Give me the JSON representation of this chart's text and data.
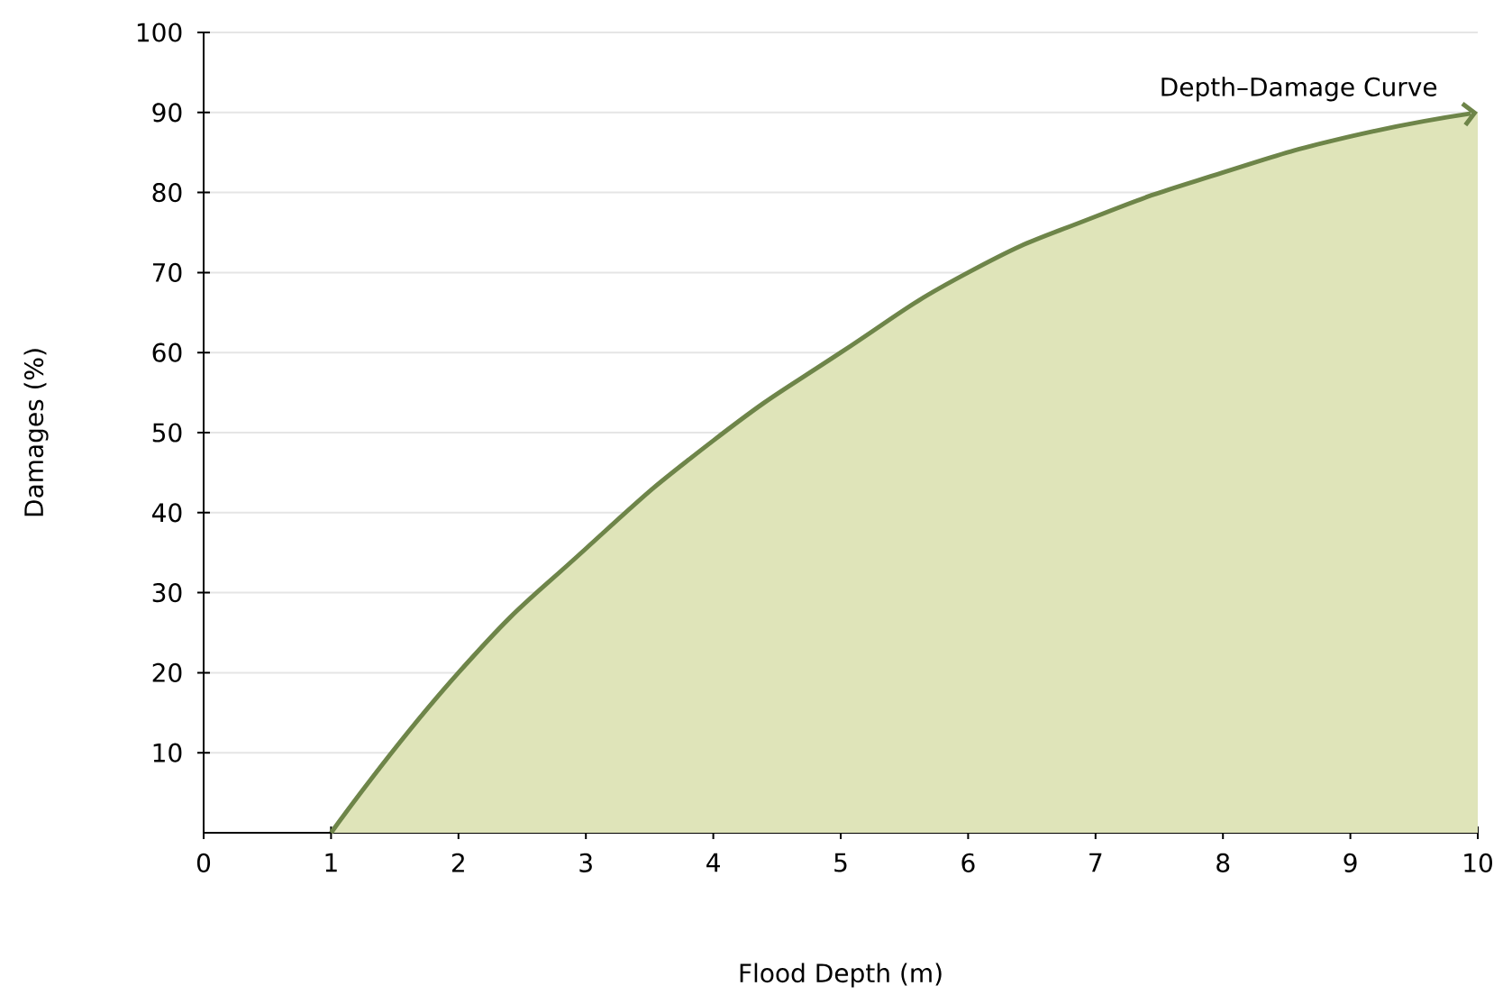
{
  "chart_data": {
    "type": "area",
    "xlabel": "Flood Depth (m)",
    "ylabel": "Damages (%)",
    "x": [
      1,
      2,
      3,
      4,
      5,
      6,
      7,
      8,
      9,
      10
    ],
    "series": [
      {
        "color": "#6e8549",
        "values": [
          0,
          20,
          35.5,
          49,
          60,
          70,
          77,
          82.5,
          87,
          90
        ]
      }
    ],
    "xlim": [
      0,
      10
    ],
    "ylim": [
      0,
      100
    ],
    "xticks": [
      0,
      1,
      2,
      3,
      4,
      5,
      6,
      7,
      8,
      9,
      10
    ],
    "yticks": [
      10,
      20,
      30,
      40,
      50,
      60,
      70,
      80,
      90,
      100
    ],
    "grid": "y",
    "marker": "none",
    "line_style": "solid",
    "annotations": [
      {
        "text": "Depth–Damage Curve",
        "x": 10,
        "y": 90
      }
    ]
  }
}
